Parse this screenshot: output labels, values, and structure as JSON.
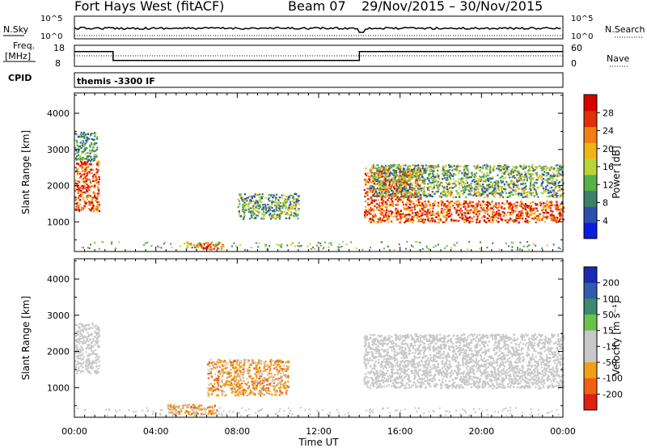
{
  "header": {
    "station": "Fort Hays West (fitACF)",
    "beam": "Beam 07",
    "dates": "29/Nov/2015 – 30/Nov/2015"
  },
  "top_panels": {
    "nsky_label": "N.Sky",
    "nsearch_label": "N.Search",
    "nsky_ticks": [
      "10^5",
      "10^0"
    ],
    "nsearch_ticks": [
      "10^5",
      "10^0"
    ],
    "freq_label_1": "Freq.",
    "freq_label_2": "[MHz]",
    "freq_ticks": [
      "18",
      "8"
    ],
    "nave_ticks": [
      "60",
      "0"
    ],
    "nave_label": "Nave",
    "cpid_label": "CPID",
    "cpid_text": "themis -3300 IF"
  },
  "axes": {
    "xlabel": "Time UT",
    "ylabel": "Slant Range [km]",
    "x_ticks": [
      "00:00",
      "04:00",
      "08:00",
      "12:00",
      "16:00",
      "20:00",
      "00:00"
    ],
    "y_ticks": [
      "1000",
      "2000",
      "3000",
      "4000"
    ]
  },
  "colorbars": {
    "power": {
      "label": "Power [dB]",
      "ticks": [
        "4",
        "8",
        "12",
        "16",
        "20",
        "24",
        "28"
      ],
      "colors": [
        "#0a1ae0",
        "#2a4fb0",
        "#3c7f6a",
        "#56b04c",
        "#b7d536",
        "#f0b514",
        "#f07f14",
        "#e0300c",
        "#d80000"
      ]
    },
    "velocity": {
      "label": "Velocity [m s⁻¹]",
      "ticks": [
        "200",
        "100",
        "50",
        "15",
        "-15",
        "-50",
        "-100",
        "-200"
      ],
      "colors": [
        "#1a2ab0",
        "#2f5cae",
        "#3d8a6e",
        "#6bc24a",
        "#c8c8c8",
        "#c8c8c8",
        "#f0a014",
        "#f06014",
        "#e02010"
      ]
    }
  },
  "chart_data": {
    "type": "heatmap",
    "x_range_hours": [
      0,
      24
    ],
    "y_range_km": [
      180,
      4560
    ],
    "freq_series": {
      "ylim": [
        8,
        18
      ],
      "segments": [
        {
          "start": 0,
          "end": 1.9,
          "freq": 15.0
        },
        {
          "start": 1.9,
          "end": 14.0,
          "freq": 10.8
        },
        {
          "start": 14.0,
          "end": 24,
          "freq": 15.0
        }
      ]
    },
    "nave_level": 30,
    "power_regions": [
      {
        "t0": 0.0,
        "t1": 1.2,
        "r0": 1300,
        "r1": 2700,
        "level": "high"
      },
      {
        "t0": 0.0,
        "t1": 1.1,
        "r0": 2700,
        "r1": 3500,
        "level": "low"
      },
      {
        "t0": 5.5,
        "t1": 7.3,
        "r0": 250,
        "r1": 450,
        "level": "high"
      },
      {
        "t0": 8.0,
        "t1": 11.0,
        "r0": 1100,
        "r1": 1800,
        "level": "mid"
      },
      {
        "t0": 14.2,
        "t1": 17.0,
        "r0": 1000,
        "r1": 2500,
        "level": "high"
      },
      {
        "t0": 17.0,
        "t1": 24.0,
        "r0": 1000,
        "r1": 1600,
        "level": "high"
      },
      {
        "t0": 14.5,
        "t1": 24.0,
        "r0": 1700,
        "r1": 2600,
        "level": "mid"
      }
    ],
    "velocity_regions": [
      {
        "t0": 0.0,
        "t1": 1.2,
        "r0": 1400,
        "r1": 2800,
        "kind": "ground"
      },
      {
        "t0": 6.5,
        "t1": 10.5,
        "r0": 800,
        "r1": 1800,
        "kind": "negative"
      },
      {
        "t0": 4.5,
        "t1": 7.0,
        "r0": 250,
        "r1": 550,
        "kind": "negative"
      },
      {
        "t0": 14.2,
        "t1": 24.0,
        "r0": 1000,
        "r1": 2500,
        "kind": "ground"
      }
    ]
  }
}
